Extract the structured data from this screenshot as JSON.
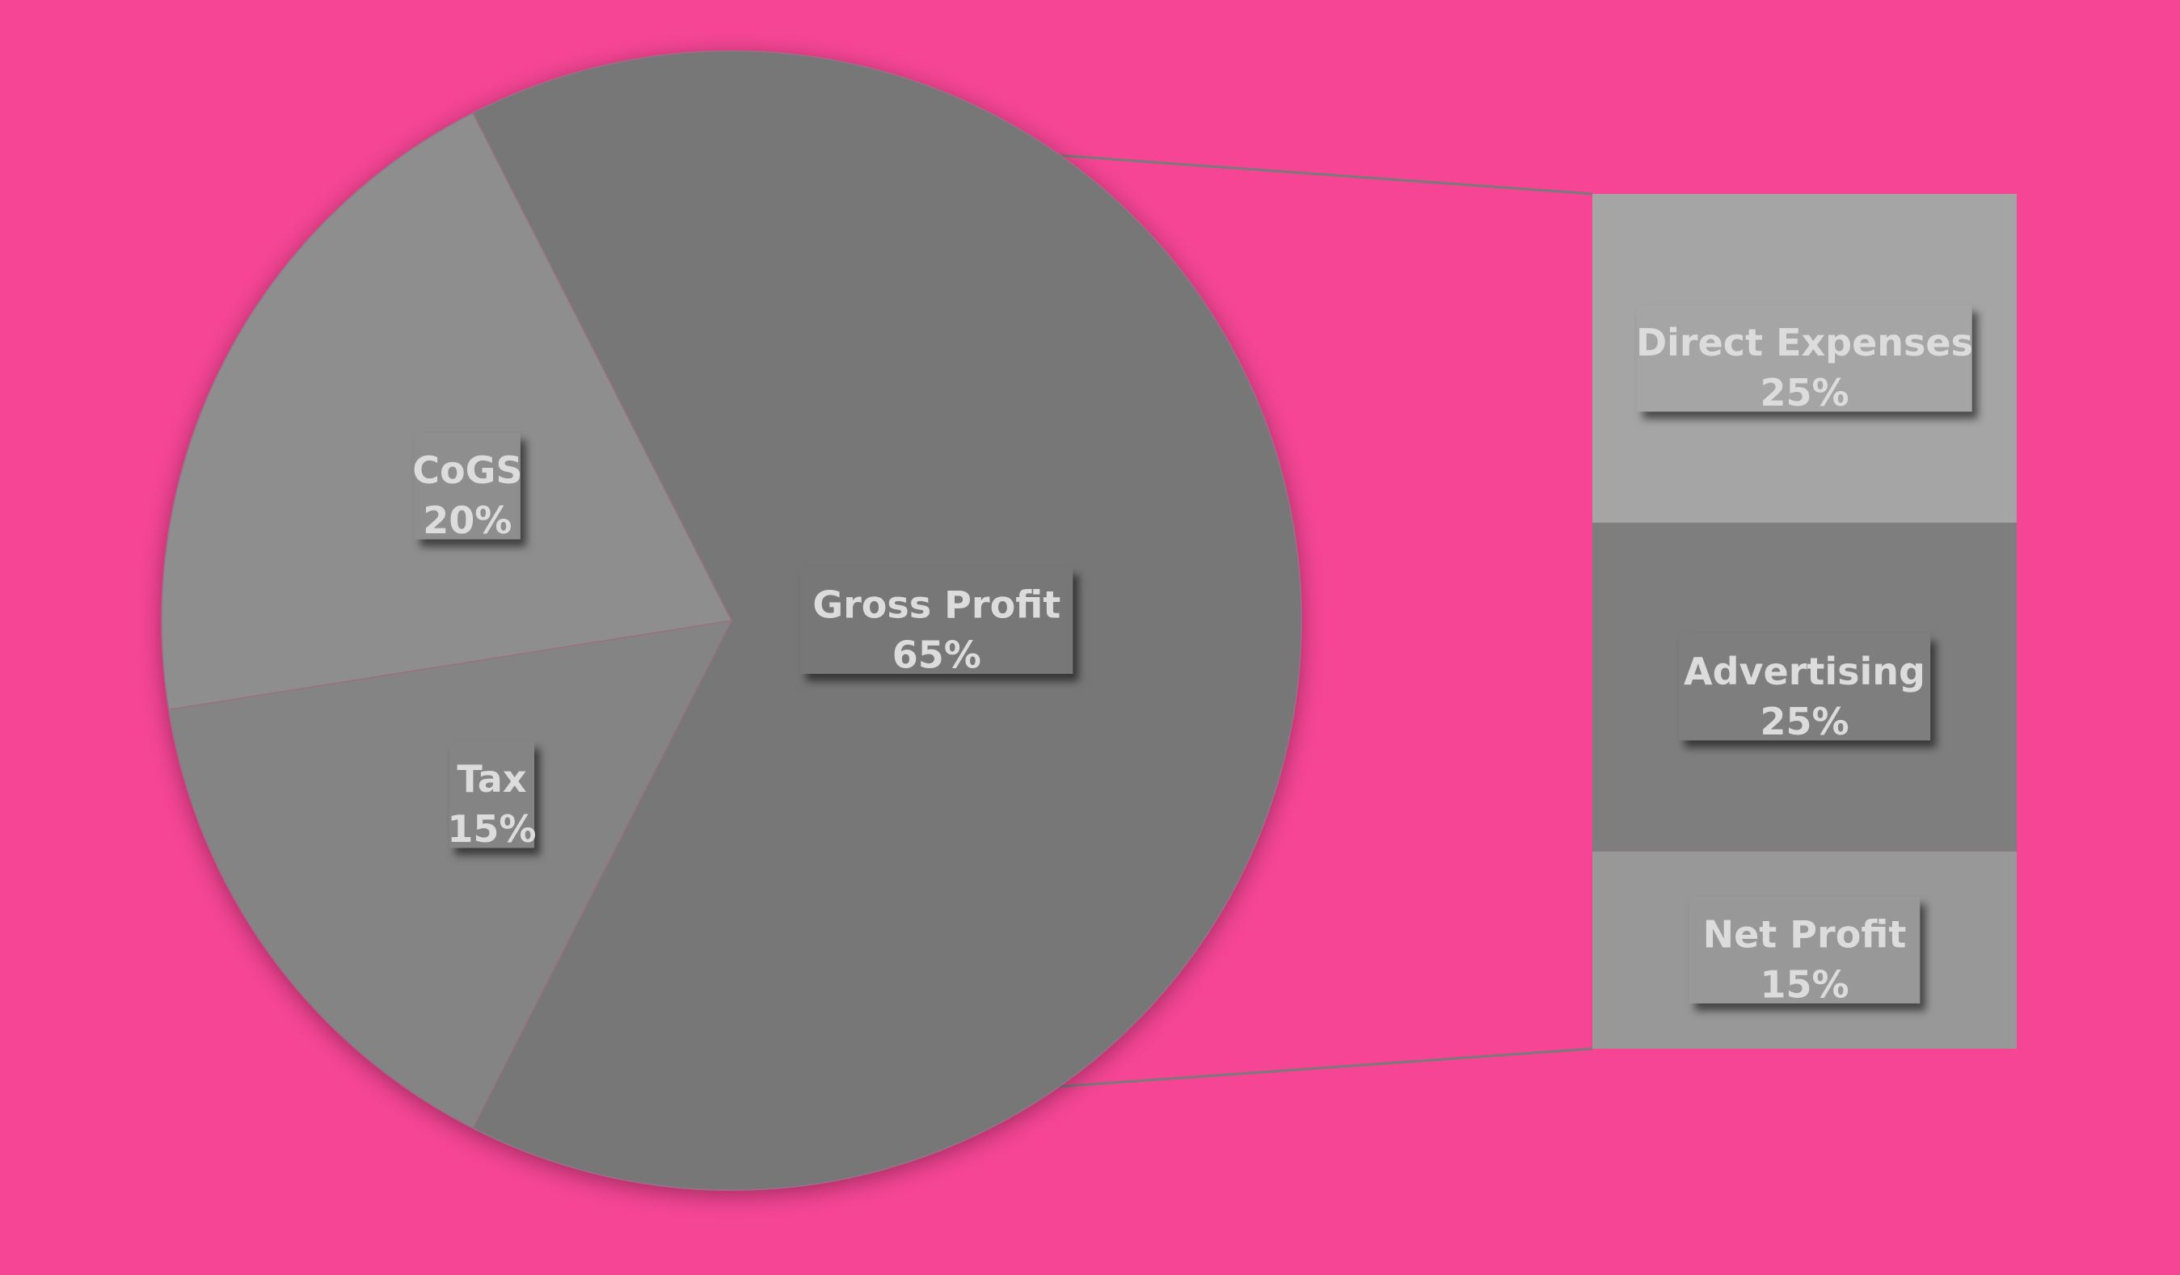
{
  "chart_data": {
    "type": "pie",
    "title": "",
    "main_pie": {
      "slices": [
        {
          "label": "Gross Profit",
          "value": 65,
          "value_label": "65%",
          "color": "#777777"
        },
        {
          "label": "Tax",
          "value": 15,
          "value_label": "15%",
          "color": "#848484"
        },
        {
          "label": "CoGS",
          "value": 20,
          "value_label": "20%",
          "color": "#8E8E8E"
        }
      ]
    },
    "breakdown_bar": {
      "of_slice": "Gross Profit",
      "segments": [
        {
          "label": "Direct Expenses",
          "value": 25,
          "value_label": "25%",
          "color": "#A5A5A5"
        },
        {
          "label": "Advertising",
          "value": 25,
          "value_label": "25%",
          "color": "#7E7E7E"
        },
        {
          "label": "Net Profit",
          "value": 15,
          "value_label": "15%",
          "color": "#989898"
        }
      ]
    },
    "legend": "none",
    "grid": false
  },
  "colors": {
    "background": "#F54594",
    "label_text": "#DCDCDC",
    "connector": "#7A7A7A"
  }
}
